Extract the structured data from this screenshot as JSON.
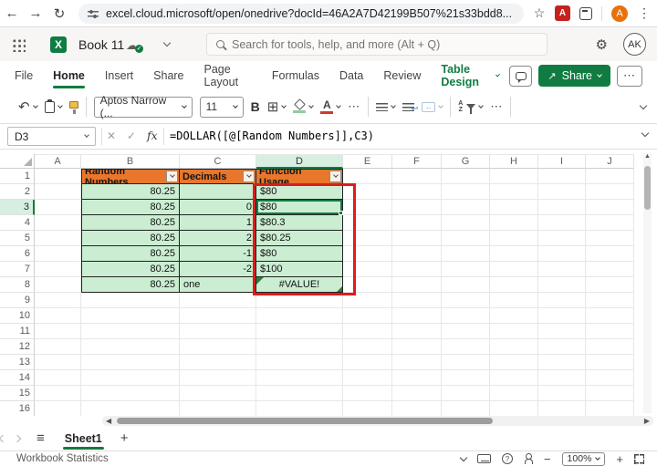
{
  "browser": {
    "url": "excel.cloud.microsoft/open/onedrive?docId=46A2A7D42199B507%21s33bdd8...",
    "profile_initial": "A"
  },
  "titlebar": {
    "app_logo_letter": "X",
    "workbook_title": "Book 11",
    "search_placeholder": "Search for tools, help, and more (Alt + Q)",
    "avatar_initials": "AK"
  },
  "ribbon": {
    "tabs": [
      "File",
      "Home",
      "Insert",
      "Share",
      "Page Layout",
      "Formulas",
      "Data",
      "Review",
      "Table Design"
    ],
    "active_tab": "Home",
    "contextual_tab": "Table Design",
    "share_label": "Share",
    "more_label": "⋯"
  },
  "toolbar": {
    "font_name": "Aptos Narrow (...",
    "font_size": "11",
    "bold_label": "B",
    "font_color_letter": "A",
    "merge_glyph": "↔",
    "wrap_arrow": "↩",
    "sort_a": "A",
    "sort_z": "Z",
    "more_label": "⋯"
  },
  "formula_bar": {
    "name_box": "D3",
    "cancel_glyph": "✕",
    "enter_glyph": "✓",
    "fx_label": "fx",
    "formula": "=DOLLAR([@[Random Numbers]],C3)"
  },
  "sheet": {
    "columns": [
      "A",
      "B",
      "C",
      "D",
      "E",
      "F",
      "G",
      "H",
      "I",
      "J"
    ],
    "row_count": 16,
    "selected_column": "D",
    "selected_row": "3",
    "active_cell": "D3",
    "table": {
      "headers": [
        "Random Numbers",
        "Decimals",
        "Function Usage"
      ],
      "rows": [
        [
          "80.25",
          "",
          "$80"
        ],
        [
          "80.25",
          "0",
          "$80"
        ],
        [
          "80.25",
          "1",
          "$80.3"
        ],
        [
          "80.25",
          "2",
          "$80.25"
        ],
        [
          "80.25",
          "-1",
          "$80"
        ],
        [
          "80.25",
          "-2",
          "$100"
        ],
        [
          "80.25",
          "one",
          "#VALUE!"
        ]
      ]
    },
    "colors": {
      "table_header_bg": "#e8762b",
      "table_cell_bg": "#cbeed2",
      "selection_green": "#107C41",
      "selection_header_bg": "#d7efe0",
      "annotation_red": "#e11a1a"
    }
  },
  "sheet_tabs": {
    "active": "Sheet1",
    "add_label": "+"
  },
  "status_bar": {
    "left": "Workbook Statistics",
    "zoom": "100%"
  }
}
